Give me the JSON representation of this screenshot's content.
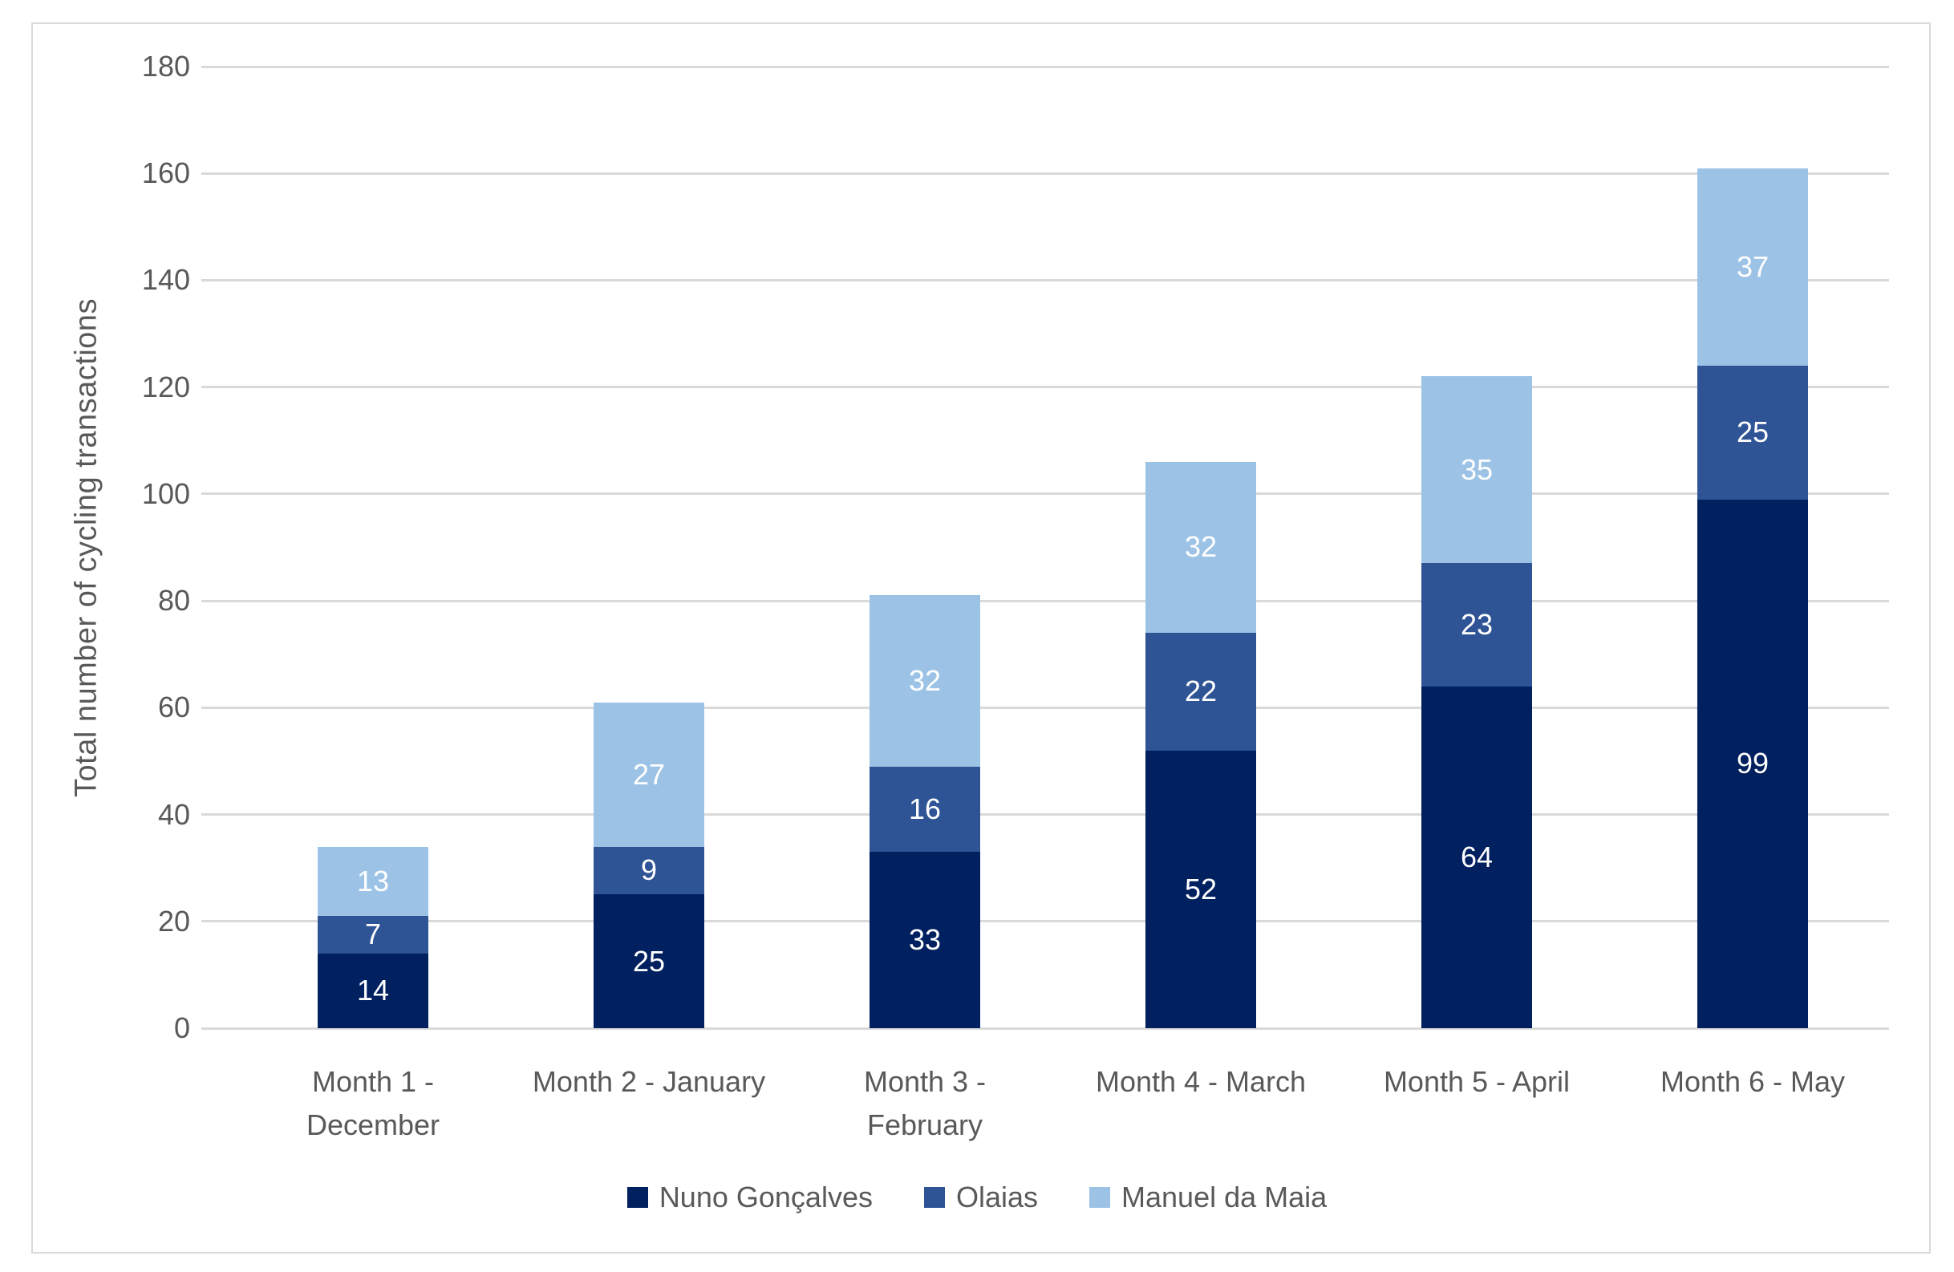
{
  "chart_data": {
    "type": "bar",
    "stacked": true,
    "title": "",
    "xlabel": "",
    "ylabel": "Total number of cycling transactions",
    "ylim": [
      0,
      180
    ],
    "ytick_step": 20,
    "grid": true,
    "legend_position": "bottom",
    "categories": [
      "Month 1 - December",
      "Month 2 - January",
      "Month 3 - February",
      "Month 4 - March",
      "Month 5 - April",
      "Month 6 - May"
    ],
    "category_label_lines": [
      [
        "Month 1 -",
        "December"
      ],
      [
        "Month 2 - January"
      ],
      [
        "Month 3 -",
        "February"
      ],
      [
        "Month 4 - March"
      ],
      [
        "Month 5 - April"
      ],
      [
        "Month 6 - May"
      ]
    ],
    "series": [
      {
        "name": "Nuno Gonçalves",
        "color": "#002060",
        "values": [
          14,
          25,
          33,
          52,
          64,
          99
        ]
      },
      {
        "name": "Olaias",
        "color": "#2F5496",
        "values": [
          7,
          9,
          16,
          22,
          23,
          25
        ]
      },
      {
        "name": "Manuel da Maia",
        "color": "#9CC3E6",
        "values": [
          13,
          27,
          32,
          32,
          35,
          37
        ]
      }
    ],
    "totals": [
      34,
      61,
      81,
      106,
      122,
      161
    ],
    "data_label_color": "#FFFFFF",
    "axis_text_color": "#595959",
    "gridline_color": "#D9D9D9",
    "border_color": "#D9D9D9"
  }
}
